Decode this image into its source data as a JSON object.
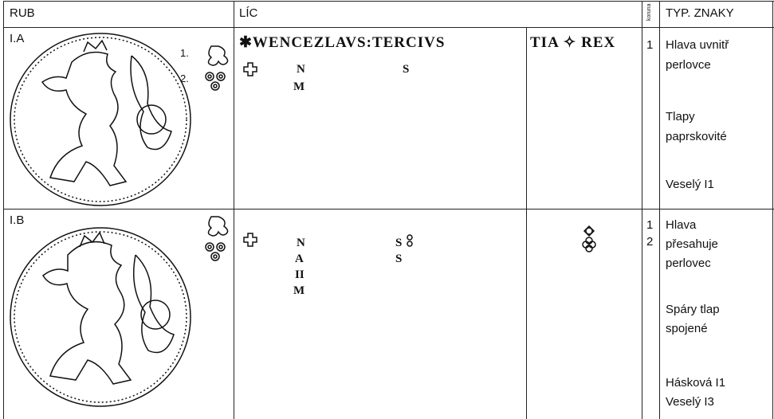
{
  "header": {
    "rub": "RUB",
    "lic": "LÍC",
    "koruna": "koruna",
    "typ": "TYP. ZNAKY"
  },
  "rows": [
    {
      "id": "I.A",
      "markers": [
        "1.",
        "2."
      ],
      "legend": [
        "✱WENCEZLAVS:TERCIVS",
        "TIA ✧ REX"
      ],
      "variants_a": [
        "N",
        "M"
      ],
      "variants_b": [
        "S"
      ],
      "koruna": [
        "1"
      ],
      "typ": [
        [
          "Hlava uvnitř",
          "perlovce"
        ],
        [
          "Tlapy",
          "paprskovité"
        ],
        [
          "Veselý I1"
        ]
      ]
    },
    {
      "id": "I.B",
      "variants_a": [
        "N",
        "A",
        "II",
        "M"
      ],
      "variants_b": [
        "S",
        "S"
      ],
      "koruna": [
        "1",
        "2"
      ],
      "typ": [
        [
          "Hlava",
          "přesahuje",
          "perlovec"
        ],
        [
          "Spáry tlap",
          "spojené"
        ],
        [
          "Hásková I1",
          "Veselý I3"
        ]
      ]
    }
  ]
}
